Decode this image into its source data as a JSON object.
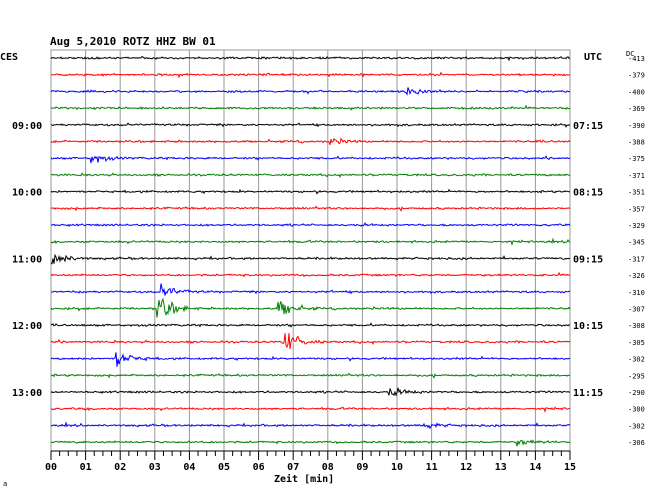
{
  "header": {
    "title": "Aug 5,2010   ROTZ HHZ BW 01",
    "left_label": "CES",
    "right_label": "UTC",
    "dc_label": "DC"
  },
  "footer": {
    "xlabel": "Zeit [min]",
    "corner_mark": "a"
  },
  "colors": {
    "cycle": [
      "#000000",
      "#ff0000",
      "#0000ff",
      "#007f00"
    ],
    "grid": "#999999",
    "axis": "#000000"
  },
  "chart_data": {
    "type": "helicorder",
    "xlim": [
      0,
      15
    ],
    "xticks": [
      "00",
      "01",
      "02",
      "03",
      "04",
      "05",
      "06",
      "07",
      "08",
      "09",
      "10",
      "11",
      "12",
      "13",
      "14",
      "15"
    ],
    "left_time_labels": [
      {
        "row": 4,
        "text": "09:00"
      },
      {
        "row": 8,
        "text": "10:00"
      },
      {
        "row": 12,
        "text": "11:00"
      },
      {
        "row": 16,
        "text": "12:00"
      },
      {
        "row": 20,
        "text": "13:00"
      }
    ],
    "right_time_labels": [
      {
        "row": 4,
        "text": "07:15"
      },
      {
        "row": 8,
        "text": "08:15"
      },
      {
        "row": 12,
        "text": "09:15"
      },
      {
        "row": 16,
        "text": "10:15"
      },
      {
        "row": 20,
        "text": "11:15"
      }
    ],
    "dc_offsets": [
      "-413",
      "-379",
      "-400",
      "-369",
      "-390",
      "-388",
      "-375",
      "-371",
      "-351",
      "-357",
      "-329",
      "-345",
      "-317",
      "-326",
      "-310",
      "-307",
      "-308",
      "-305",
      "-302",
      "-295",
      "-290",
      "-300",
      "-302",
      "-306"
    ],
    "events": [
      {
        "row": 2,
        "minute": 10.3,
        "amp": 0.35
      },
      {
        "row": 5,
        "minute": 8.1,
        "amp": 0.3
      },
      {
        "row": 6,
        "minute": 1.2,
        "amp": 0.45
      },
      {
        "row": 12,
        "minute": 0.0,
        "amp": 0.9
      },
      {
        "row": 14,
        "minute": 3.2,
        "amp": 0.7
      },
      {
        "row": 15,
        "minute": 3.1,
        "amp": 1.5
      },
      {
        "row": 15,
        "minute": 6.6,
        "amp": 0.9
      },
      {
        "row": 17,
        "minute": 6.7,
        "amp": 1.4
      },
      {
        "row": 18,
        "minute": 1.9,
        "amp": 0.9
      },
      {
        "row": 20,
        "minute": 9.8,
        "amp": 0.45
      },
      {
        "row": 22,
        "minute": 10.8,
        "amp": 0.3
      },
      {
        "row": 23,
        "minute": 13.5,
        "amp": 0.3
      }
    ]
  }
}
